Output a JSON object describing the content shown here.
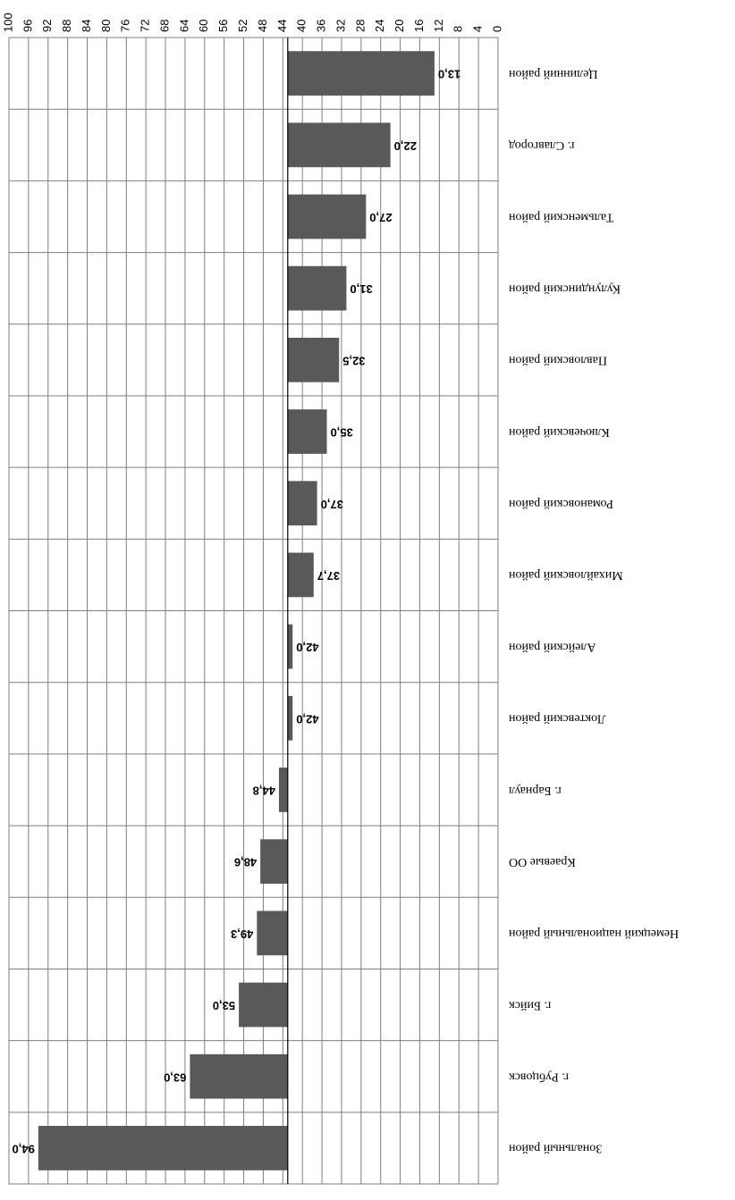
{
  "chart_data": {
    "type": "bar",
    "orientation": "horizontal",
    "image_rotation_degrees": 180,
    "categories": [
      "Целинний район",
      "г. Славгород",
      "Тальменский район",
      "Кулундинский район",
      "Павловский район",
      "Ключевский район",
      "Романовский район",
      "Михайловский район",
      "Алейский район",
      "Локтевский район",
      "г. Барнаул",
      "Краевые ОО",
      "Немецкий национальный район",
      "г. Бийск",
      "г. Рубцовск",
      "Зональный район"
    ],
    "values": [
      13.0,
      22.0,
      27.0,
      31.0,
      32.5,
      35.0,
      37.0,
      37.7,
      42.0,
      42.0,
      44.8,
      48.6,
      49.3,
      53.0,
      63.0,
      94.0
    ],
    "value_labels": [
      "13,0",
      "22,0",
      "27,0",
      "31,0",
      "32,5",
      "35,0",
      "37,0",
      "37,7",
      "42,0",
      "42,0",
      "44,8",
      "48,6",
      "49,3",
      "53,0",
      "63,0",
      "94,0"
    ],
    "baseline": 43,
    "xlim": [
      0,
      100
    ],
    "ticks": [
      0,
      4,
      8,
      12,
      16,
      20,
      24,
      28,
      32,
      36,
      40,
      44,
      48,
      52,
      56,
      60,
      64,
      68,
      72,
      76,
      80,
      84,
      88,
      92,
      96,
      100
    ],
    "tick_labels": [
      "0",
      "4",
      "8",
      "12",
      "16",
      "20",
      "24",
      "28",
      "32",
      "36",
      "40",
      "44",
      "48",
      "52",
      "56",
      "60",
      "64",
      "68",
      "72",
      "76",
      "80",
      "84",
      "88",
      "92",
      "96",
      "100"
    ],
    "title": "",
    "xlabel": "",
    "ylabel": "",
    "grid": true,
    "legend": "none",
    "bar_color": "#595959",
    "grid_color": "#7f7f7f"
  }
}
